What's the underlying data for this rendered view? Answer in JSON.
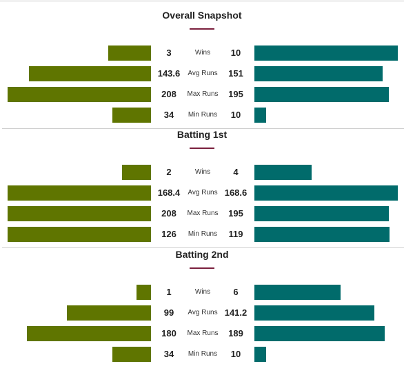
{
  "colors": {
    "left": "#5f7500",
    "right": "#016b6b",
    "accent": "#7a1f3d"
  },
  "chart_data": [
    {
      "type": "bar",
      "title": "Overall Snapshot",
      "categories": [
        "Wins",
        "Avg Runs",
        "Max Runs",
        "Min Runs"
      ],
      "series": [
        {
          "values": [
            3,
            143.6,
            208,
            34
          ]
        },
        {
          "values": [
            10,
            151,
            195,
            10
          ]
        }
      ]
    },
    {
      "type": "bar",
      "title": "Batting 1st",
      "categories": [
        "Wins",
        "Avg Runs",
        "Max Runs",
        "Min Runs"
      ],
      "series": [
        {
          "values": [
            2,
            168.4,
            208,
            126
          ]
        },
        {
          "values": [
            4,
            168.6,
            195,
            119
          ]
        }
      ]
    },
    {
      "type": "bar",
      "title": "Batting 2nd",
      "categories": [
        "Wins",
        "Avg Runs",
        "Max Runs",
        "Min Runs"
      ],
      "series": [
        {
          "values": [
            1,
            99,
            180,
            34
          ]
        },
        {
          "values": [
            6,
            141.2,
            189,
            10
          ]
        }
      ]
    }
  ]
}
